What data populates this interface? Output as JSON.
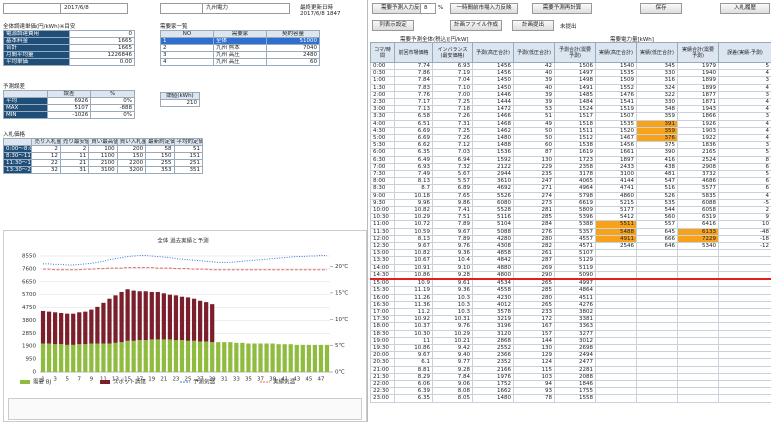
{
  "header": {
    "date_label": "業務対象日",
    "date": "2017/6/8",
    "company_label": "電力会社",
    "company": "九州電力",
    "updated_label": "最終更新日時",
    "updated": "2017/6/8 1847"
  },
  "toolbar": {
    "buttons": [
      "需要予測入力反映",
      "一時間前市場入力反映",
      "需要予測再計算",
      "保存",
      "入札履歴"
    ],
    "rate": "8",
    "rate_unit": "%",
    "buttons2": [
      "列表示設定",
      "計画ファイル作成",
      "計画提出"
    ],
    "status": "未提出"
  },
  "cost_table": {
    "title": "全体調達単価(円/kWh)※目安",
    "rows": [
      [
        "電源調達費用",
        "0"
      ],
      [
        "基本料金",
        "1665"
      ],
      [
        "合計",
        "1665"
      ],
      [
        "月間平均量",
        "1226846"
      ],
      [
        "平均単価",
        "0.00"
      ]
    ]
  },
  "customers": {
    "title": "需要家一覧",
    "headers": [
      "NO",
      "需要家",
      "契約容量"
    ],
    "rows": [
      [
        "1",
        "全体",
        "51000"
      ],
      [
        "2",
        "九州 熊本",
        "7040"
      ],
      [
        "3",
        "九州 高圧",
        "2480"
      ],
      [
        "4",
        "九州 高圧",
        "60"
      ]
    ]
  },
  "error_table": {
    "title": "予測誤差",
    "headers": [
      "誤差",
      "%"
    ],
    "rows": [
      [
        "平均",
        "6926",
        "0%"
      ],
      [
        "MAX",
        "5107",
        "-888"
      ],
      [
        "MIN",
        "-1026",
        "0%"
      ]
    ]
  },
  "threshold": {
    "label": "閾値(kWh)",
    "value": "210"
  },
  "bid": {
    "title": "入札価格",
    "headers": [
      "売り入札量",
      "売り最安値",
      "買い最高値",
      "買い入札量",
      "最新約定価格",
      "平均約定価格"
    ],
    "rows": [
      [
        "0:00〜8:00",
        "2",
        "2",
        "100",
        "200",
        "58",
        "51"
      ],
      [
        "8:30〜11:00",
        "12",
        "11",
        "1100",
        "150",
        "150",
        "151"
      ],
      [
        "11:30〜13:00",
        "22",
        "21",
        "2100",
        "2200",
        "255",
        "251"
      ],
      [
        "13:30〜24:00",
        "32",
        "31",
        "3100",
        "3200",
        "353",
        "351"
      ]
    ]
  },
  "chart_data": {
    "type": "bar",
    "title": "全体 過去実績と予測",
    "categories": [
      1,
      2,
      3,
      4,
      5,
      6,
      7,
      8,
      9,
      10,
      11,
      12,
      13,
      14,
      15,
      16,
      17,
      18,
      19,
      20,
      21,
      22,
      23,
      24,
      25,
      26,
      27,
      28,
      29,
      30,
      31,
      32,
      33,
      34,
      35,
      36,
      37,
      38,
      39,
      40,
      41,
      42,
      43,
      44,
      45,
      46,
      47,
      48
    ],
    "xticks": [
      1,
      3,
      5,
      7,
      9,
      11,
      13,
      15,
      17,
      19,
      21,
      23,
      25,
      27,
      29,
      31,
      33,
      35,
      37,
      39,
      41,
      43,
      45,
      47
    ],
    "series": [
      {
        "name": "需要 BJ",
        "color": "#8fbc3f",
        "values": [
          2100,
          2100,
          2050,
          2050,
          2000,
          2000,
          2050,
          2050,
          2100,
          2100,
          2100,
          2100,
          2150,
          2200,
          2300,
          2300,
          2350,
          2350,
          2400,
          2400,
          2400,
          2400,
          2350,
          2350,
          2300,
          2300,
          2250,
          2250,
          2200,
          2200,
          2200,
          2200,
          2150,
          2150,
          2100,
          2100,
          2100,
          2100,
          2100,
          2050,
          2050,
          2050,
          2000,
          2000,
          2000,
          2000,
          2000,
          2000
        ]
      },
      {
        "name": "スポット調達",
        "color": "#7a1f2b",
        "values": [
          2400,
          2350,
          2350,
          2300,
          2300,
          2300,
          2350,
          2400,
          2500,
          2700,
          3000,
          3300,
          3500,
          3700,
          3800,
          3700,
          3600,
          3600,
          3500,
          3500,
          3400,
          3300,
          3300,
          3200,
          3200,
          3100,
          3000,
          2900,
          2800,
          null,
          null,
          null,
          null,
          null,
          null,
          null,
          null,
          null,
          null,
          null,
          null,
          null,
          null,
          null,
          null,
          null,
          null,
          null
        ]
      },
      {
        "name": "予測気温",
        "color": "#3c78d8",
        "axis": "y2",
        "values": [
          20.5,
          20.5,
          20.4,
          20.4,
          20.3,
          20.3,
          20.4,
          20.5,
          20.6,
          20.8,
          21.0,
          21.3,
          21.5,
          21.7,
          21.9,
          22.0,
          22.1,
          22.1,
          22.0,
          21.9,
          21.8,
          21.7,
          21.5,
          21.4,
          21.3,
          21.2,
          21.1,
          21.0,
          20.9,
          20.8,
          20.8,
          20.8,
          20.9,
          21.0,
          21.1,
          21.2,
          21.3,
          21.4,
          21.5,
          21.6,
          21.7,
          21.8,
          21.9,
          21.9,
          22.0,
          22.0,
          22.1,
          22.1
        ]
      },
      {
        "name": "実績気温",
        "color": "#e06666",
        "axis": "y2",
        "values": [
          19.5,
          19.5,
          19.4,
          19.4,
          19.4,
          19.4,
          19.4,
          19.5,
          19.5,
          19.6,
          19.6,
          19.7,
          19.7,
          19.7,
          19.8,
          19.8,
          19.8,
          19.8,
          19.8,
          19.7,
          19.7,
          19.7,
          19.6,
          19.6,
          19.6,
          19.5,
          19.5,
          19.5,
          19.4,
          19.4,
          19.4,
          19.4,
          19.4,
          19.4,
          19.4,
          19.4,
          19.4,
          19.4,
          19.4,
          19.4,
          19.4,
          19.4,
          19.4,
          19.4,
          19.4,
          19.4,
          19.4,
          19.4
        ]
      }
    ],
    "ylim": [
      0,
      8550
    ],
    "yticks": [
      0,
      950,
      1900,
      2850,
      3800,
      4750,
      5700,
      6650,
      7600,
      8550
    ],
    "y2lim": [
      0,
      22
    ],
    "y2ticks": [
      {
        "value": 0,
        "label": "0℃"
      },
      {
        "value": 5,
        "label": "5℃"
      },
      {
        "value": 10,
        "label": "10℃"
      },
      {
        "value": 15,
        "label": "15℃"
      },
      {
        "value": 20,
        "label": "20℃"
      }
    ],
    "grid": true
  },
  "main_table": {
    "group1": "需要予測全体(税込)[円/kW]",
    "group2": "需要電力量[kWh]",
    "headers": [
      "コマ/時間",
      "前回市場価格",
      "インバランス(最安価格)",
      "予測(高圧合計)",
      "予測(低圧合計)",
      "予測合計(需要予測)",
      "実績(高圧合計)",
      "実績(低圧合計)",
      "実績合計(需要予測)",
      "誤差(実績-予測)"
    ],
    "rows": [
      [
        "0:00",
        "7.74",
        "6.93",
        "1456",
        "42",
        "1506",
        "1540",
        "345",
        "1979",
        "5"
      ],
      [
        "0:30",
        "7.86",
        "7.19",
        "1456",
        "40",
        "1497",
        "1535",
        "330",
        "1940",
        "4"
      ],
      [
        "1:00",
        "7.84",
        "7.04",
        "1450",
        "39",
        "1498",
        "1509",
        "316",
        "1899",
        "3"
      ],
      [
        "1:30",
        "7.83",
        "7.10",
        "1450",
        "40",
        "1491",
        "1552",
        "324",
        "1899",
        "4"
      ],
      [
        "2:00",
        "7.76",
        "7.00",
        "1446",
        "39",
        "1485",
        "1476",
        "322",
        "1877",
        "3"
      ],
      [
        "2:30",
        "7.17",
        "7.25",
        "1444",
        "39",
        "1484",
        "1541",
        "330",
        "1871",
        "4"
      ],
      [
        "3:00",
        "7.13",
        "7.18",
        "1472",
        "53",
        "1524",
        "1519",
        "348",
        "1943",
        "4"
      ],
      [
        "3:30",
        "6.58",
        "7.26",
        "1466",
        "51",
        "1517",
        "1507",
        "359",
        "1866",
        "3"
      ],
      [
        "4:00",
        "6.51",
        "7.31",
        "1468",
        "49",
        "1518",
        "1535",
        "391",
        "1926",
        "4"
      ],
      [
        "4:30",
        "6.69",
        "7.25",
        "1462",
        "50",
        "1511",
        "1520",
        "359",
        "1903",
        "4"
      ],
      [
        "5:00",
        "6.69",
        "7.26",
        "1480",
        "50",
        "1512",
        "1467",
        "376",
        "1922",
        "4"
      ],
      [
        "5:30",
        "6.62",
        "7.12",
        "1488",
        "60",
        "1538",
        "1456",
        "375",
        "1836",
        "3"
      ],
      [
        "6:00",
        "6.35",
        "7.03",
        "1536",
        "87",
        "1619",
        "1661",
        "390",
        "2165",
        "5"
      ],
      [
        "6:30",
        "6.49",
        "6.94",
        "1592",
        "130",
        "1723",
        "1897",
        "416",
        "2524",
        "8"
      ],
      [
        "7:00",
        "6.93",
        "7.32",
        "2122",
        "229",
        "2358",
        "2433",
        "438",
        "2908",
        "6"
      ],
      [
        "7:30",
        "7.49",
        "5.67",
        "2944",
        "235",
        "3178",
        "3100",
        "481",
        "3732",
        "5"
      ],
      [
        "8:00",
        "8.13",
        "5.57",
        "3610",
        "247",
        "4065",
        "4144",
        "547",
        "4686",
        "6"
      ],
      [
        "8:30",
        "8.7",
        "6.89",
        "4692",
        "271",
        "4964",
        "4741",
        "516",
        "5577",
        "6"
      ],
      [
        "9:00",
        "10.18",
        "7.65",
        "5526",
        "274",
        "5798",
        "4860",
        "526",
        "5835",
        "4"
      ],
      [
        "9:30",
        "9.96",
        "9.86",
        "6080",
        "273",
        "6619",
        "5215",
        "535",
        "6088",
        "-5"
      ],
      [
        "10:00",
        "10.82",
        "7.41",
        "5528",
        "281",
        "5809",
        "5177",
        "544",
        "6058",
        "2"
      ],
      [
        "10:30",
        "10.29",
        "7.51",
        "5116",
        "285",
        "5396",
        "5412",
        "560",
        "6319",
        "9"
      ],
      [
        "11:00",
        "10.72",
        "7.89",
        "5104",
        "284",
        "5388",
        "5511",
        "557",
        "6416",
        "10"
      ],
      [
        "11:30",
        "10.59",
        "9.67",
        "5088",
        "276",
        "5357",
        "5488",
        "645",
        "6133",
        "-48"
      ],
      [
        "12:00",
        "8.13",
        "7.89",
        "4280",
        "280",
        "4557",
        "4911",
        "666",
        "7229",
        "-18"
      ],
      [
        "12:30",
        "9.67",
        "9.76",
        "4308",
        "282",
        "4571",
        "2546",
        "646",
        "5340",
        "-12"
      ],
      [
        "13:00",
        "10.82",
        "9.36",
        "4858",
        "261",
        "5107",
        null,
        null,
        null,
        null
      ],
      [
        "13:30",
        "10.67",
        "10.4",
        "4842",
        "287",
        "5129",
        null,
        null,
        null,
        null
      ],
      [
        "14:00",
        "10.91",
        "9.10",
        "4880",
        "269",
        "5119",
        null,
        null,
        null,
        null
      ],
      [
        "14:30",
        "10.86",
        "9.28",
        "4800",
        "290",
        "5090",
        null,
        null,
        null,
        null
      ],
      [
        "15:00",
        "10.9",
        "9.61",
        "4534",
        "265",
        "4997",
        null,
        null,
        null,
        null
      ],
      [
        "15:30",
        "11.19",
        "9.36",
        "4558",
        "285",
        "4864",
        null,
        null,
        null,
        null
      ],
      [
        "16:00",
        "11.26",
        "10.3",
        "4230",
        "280",
        "4511",
        null,
        null,
        null,
        null
      ],
      [
        "16:30",
        "11.36",
        "10.3",
        "4012",
        "265",
        "4276",
        null,
        null,
        null,
        null
      ],
      [
        "17:00",
        "11.2",
        "10.3",
        "3578",
        "233",
        "3802",
        null,
        null,
        null,
        null
      ],
      [
        "17:30",
        "10.92",
        "10.31",
        "3219",
        "172",
        "3381",
        null,
        null,
        null,
        null
      ],
      [
        "18:00",
        "10.37",
        "9.76",
        "3196",
        "167",
        "3363",
        null,
        null,
        null,
        null
      ],
      [
        "18:30",
        "10.30",
        "10.29",
        "3120",
        "157",
        "3277",
        null,
        null,
        null,
        null
      ],
      [
        "19:00",
        "11",
        "10.21",
        "2868",
        "144",
        "3012",
        null,
        null,
        null,
        null
      ],
      [
        "19:30",
        "10.86",
        "9.42",
        "2552",
        "130",
        "2698",
        null,
        null,
        null,
        null
      ],
      [
        "20:00",
        "9.67",
        "9.40",
        "2366",
        "129",
        "2494",
        null,
        null,
        null,
        null
      ],
      [
        "20:30",
        "6.1",
        "9.77",
        "2352",
        "124",
        "2477",
        null,
        null,
        null,
        null
      ],
      [
        "21:00",
        "8.81",
        "9.28",
        "2166",
        "115",
        "2281",
        null,
        null,
        null,
        null
      ],
      [
        "21:30",
        "8.29",
        "7.84",
        "1976",
        "103",
        "2088",
        null,
        null,
        null,
        null
      ],
      [
        "22:00",
        "6.06",
        "9.06",
        "1752",
        "94",
        "1846",
        null,
        null,
        null,
        null
      ],
      [
        "22:30",
        "6.39",
        "8.08",
        "1662",
        "93",
        "1755",
        null,
        null,
        null,
        null
      ],
      [
        "23:00",
        "6.35",
        "8.05",
        "1480",
        "78",
        "1558",
        null,
        null,
        null,
        null
      ]
    ]
  }
}
